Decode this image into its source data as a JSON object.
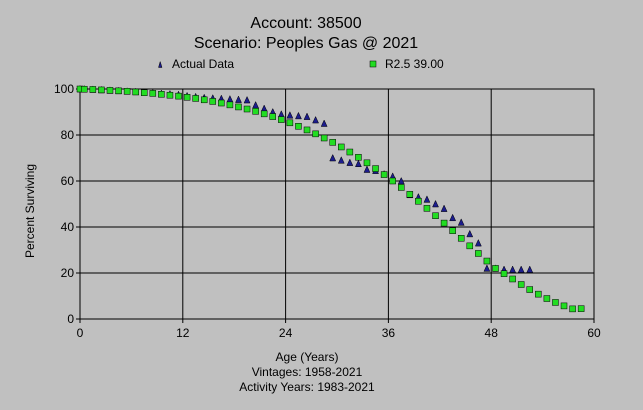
{
  "chart_data": {
    "type": "scatter",
    "title": [
      "Account: 38500",
      "Scenario: Peoples Gas @ 2021"
    ],
    "xlabel": "Age (Years)",
    "ylabel": "Percent Surviving",
    "captions": [
      "Vintages: 1958-2021",
      "Activity Years: 1983-2021"
    ],
    "xlim": [
      0,
      60
    ],
    "ylim": [
      0,
      100
    ],
    "xticks": [
      0,
      12,
      24,
      36,
      48,
      60
    ],
    "yticks": [
      0,
      20,
      40,
      60,
      80,
      100
    ],
    "grid": true,
    "legend_position": "top",
    "series": [
      {
        "name": "Actual Data",
        "marker": "triangle",
        "color": "#1c1c8c",
        "x": [
          0,
          0.5,
          1.5,
          2.5,
          3.5,
          4.5,
          5.5,
          6.5,
          7.5,
          8.5,
          9.5,
          10.5,
          11.5,
          12.5,
          13.5,
          14.5,
          15.5,
          16.5,
          17.5,
          18.5,
          19.5,
          20.5,
          21.5,
          22.5,
          23.5,
          24.5,
          25.5,
          26.5,
          27.5,
          28.5,
          29.5,
          30.5,
          31.5,
          32.5,
          33.5,
          34.5,
          35.5,
          36.5,
          37.5,
          38.5,
          39.5,
          40.5,
          41.5,
          42.5,
          43.5,
          44.5,
          45.5,
          46.5,
          47.5,
          48.5,
          49.5,
          50.5,
          51.5,
          52.5
        ],
        "y": [
          100,
          100,
          99.8,
          99.6,
          99.4,
          99.2,
          99,
          98.8,
          98.5,
          98.3,
          98,
          97.8,
          97.5,
          97,
          96.6,
          96.2,
          96,
          95.8,
          95.6,
          95.4,
          95.2,
          93,
          91.5,
          90,
          89,
          88.6,
          88.3,
          88,
          86.5,
          85,
          70,
          69,
          68,
          67.5,
          65,
          64.5,
          63,
          62,
          60,
          54,
          53,
          52,
          50,
          48,
          44,
          42,
          37,
          33,
          22,
          22,
          21.5,
          21.5,
          21.5,
          21.5
        ]
      },
      {
        "name": "R2.5 39.00",
        "marker": "square",
        "color": "#22dd22",
        "x": [
          0,
          0.5,
          1.5,
          2.5,
          3.5,
          4.5,
          5.5,
          6.5,
          7.5,
          8.5,
          9.5,
          10.5,
          11.5,
          12.5,
          13.5,
          14.5,
          15.5,
          16.5,
          17.5,
          18.5,
          19.5,
          20.5,
          21.5,
          22.5,
          23.5,
          24.5,
          25.5,
          26.5,
          27.5,
          28.5,
          29.5,
          30.5,
          31.5,
          32.5,
          33.5,
          34.5,
          35.5,
          36.5,
          37.5,
          38.5,
          39.5,
          40.5,
          41.5,
          42.5,
          43.5,
          44.5,
          45.5,
          46.5,
          47.5,
          48.5,
          49.5,
          50.5,
          51.5,
          52.5,
          53.5,
          54.5,
          55.5,
          56.5,
          57.5,
          58.5
        ],
        "y": [
          100,
          99.9,
          99.8,
          99.6,
          99.4,
          99.2,
          99,
          98.7,
          98.4,
          98.1,
          97.7,
          97.3,
          96.9,
          96.4,
          95.9,
          95.3,
          94.6,
          93.9,
          93.1,
          92.2,
          91.3,
          90.3,
          89.2,
          88,
          86.7,
          85.3,
          83.8,
          82.2,
          80.5,
          78.7,
          76.8,
          74.8,
          72.6,
          70.3,
          67.9,
          65.4,
          62.8,
          60,
          57.2,
          54.2,
          51.2,
          48.1,
          44.9,
          41.7,
          38.4,
          35.1,
          31.8,
          28.5,
          25.2,
          22,
          19.7,
          17.4,
          15,
          12.8,
          10.8,
          8.9,
          7.2,
          5.7,
          4.4,
          4.5
        ]
      }
    ]
  }
}
